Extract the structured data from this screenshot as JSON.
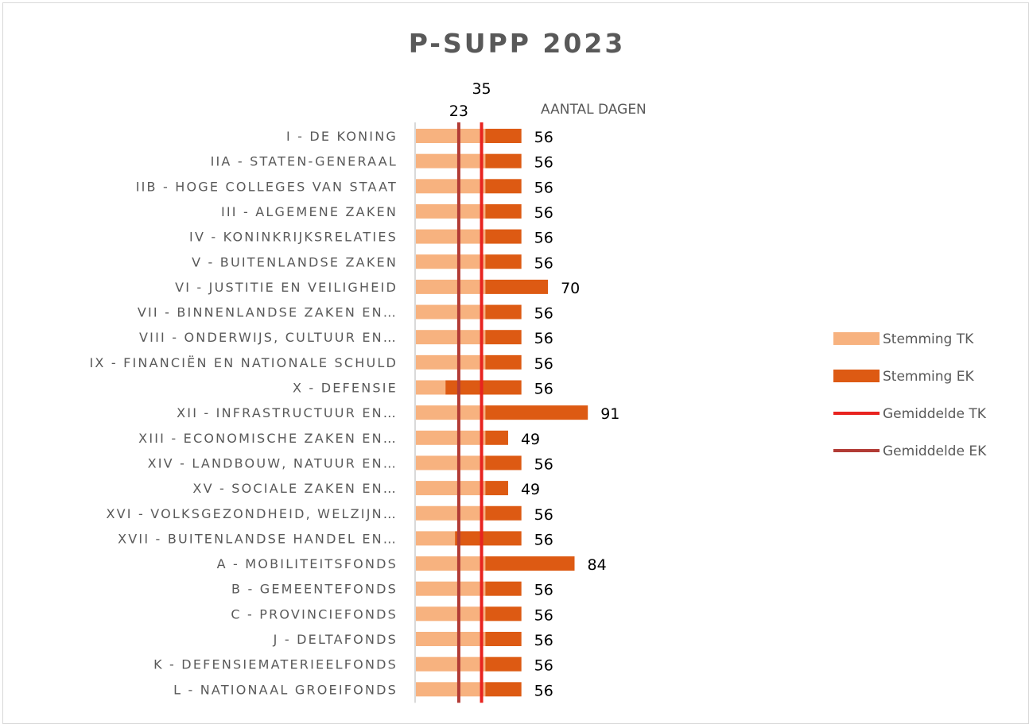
{
  "chart_data": {
    "type": "bar",
    "orientation": "horizontal",
    "stacked": true,
    "title": "P-SUPP 2023",
    "value_header": "AANTAL DAGEN",
    "categories": [
      "I - DE KONING",
      "IIA - STATEN-GENERAAL",
      "IIB - HOGE COLLEGES VAN STAAT",
      "III - ALGEMENE ZAKEN",
      "IV - KONINKRIJKSRELATIES",
      "V - BUITENLANDSE ZAKEN",
      "VI - JUSTITIE EN VEILIGHEID",
      "VII - BINNENLANDSE ZAKEN EN…",
      "VIII - ONDERWIJS, CULTUUR EN…",
      "IX - FINANCIËN EN NATIONALE SCHULD",
      "X - DEFENSIE",
      "XII - INFRASTRUCTUUR EN…",
      "XIII - ECONOMISCHE ZAKEN EN…",
      "XIV - LANDBOUW, NATUUR EN…",
      "XV - SOCIALE ZAKEN EN…",
      "XVI - VOLKSGEZONDHEID, WELZIJN…",
      "XVII - BUITENLANDSE HANDEL EN…",
      "A - MOBILITEITSFONDS",
      "B - GEMEENTEFONDS",
      "C - PROVINCIEFONDS",
      "J - DELTAFONDS",
      "K - DEFENSIEMATERIEELFONDS",
      "L - NATIONAAL GROEIFONDS"
    ],
    "series": [
      {
        "name": "Stemming TK",
        "color": "#f7b27f",
        "values": [
          37,
          37,
          37,
          37,
          37,
          37,
          37,
          37,
          37,
          37,
          16,
          37,
          37,
          37,
          37,
          37,
          21,
          37,
          37,
          37,
          37,
          37,
          37
        ]
      },
      {
        "name": "Stemming EK",
        "color": "#dd5a13",
        "values": [
          19,
          19,
          19,
          19,
          19,
          19,
          33,
          19,
          19,
          19,
          40,
          54,
          12,
          19,
          12,
          19,
          35,
          47,
          19,
          19,
          19,
          19,
          19
        ]
      }
    ],
    "totals": [
      56,
      56,
      56,
      56,
      56,
      56,
      70,
      56,
      56,
      56,
      56,
      91,
      49,
      56,
      49,
      56,
      56,
      84,
      56,
      56,
      56,
      56,
      56
    ],
    "reference_lines": [
      {
        "name": "Gemiddelde TK",
        "value": 35,
        "label": "35",
        "color": "#e8231f"
      },
      {
        "name": "Gemiddelde EK",
        "value": 23,
        "label": "23",
        "color": "#b23b35"
      }
    ],
    "xlim": [
      0,
      100
    ],
    "grid": false,
    "legend_position": "right"
  }
}
